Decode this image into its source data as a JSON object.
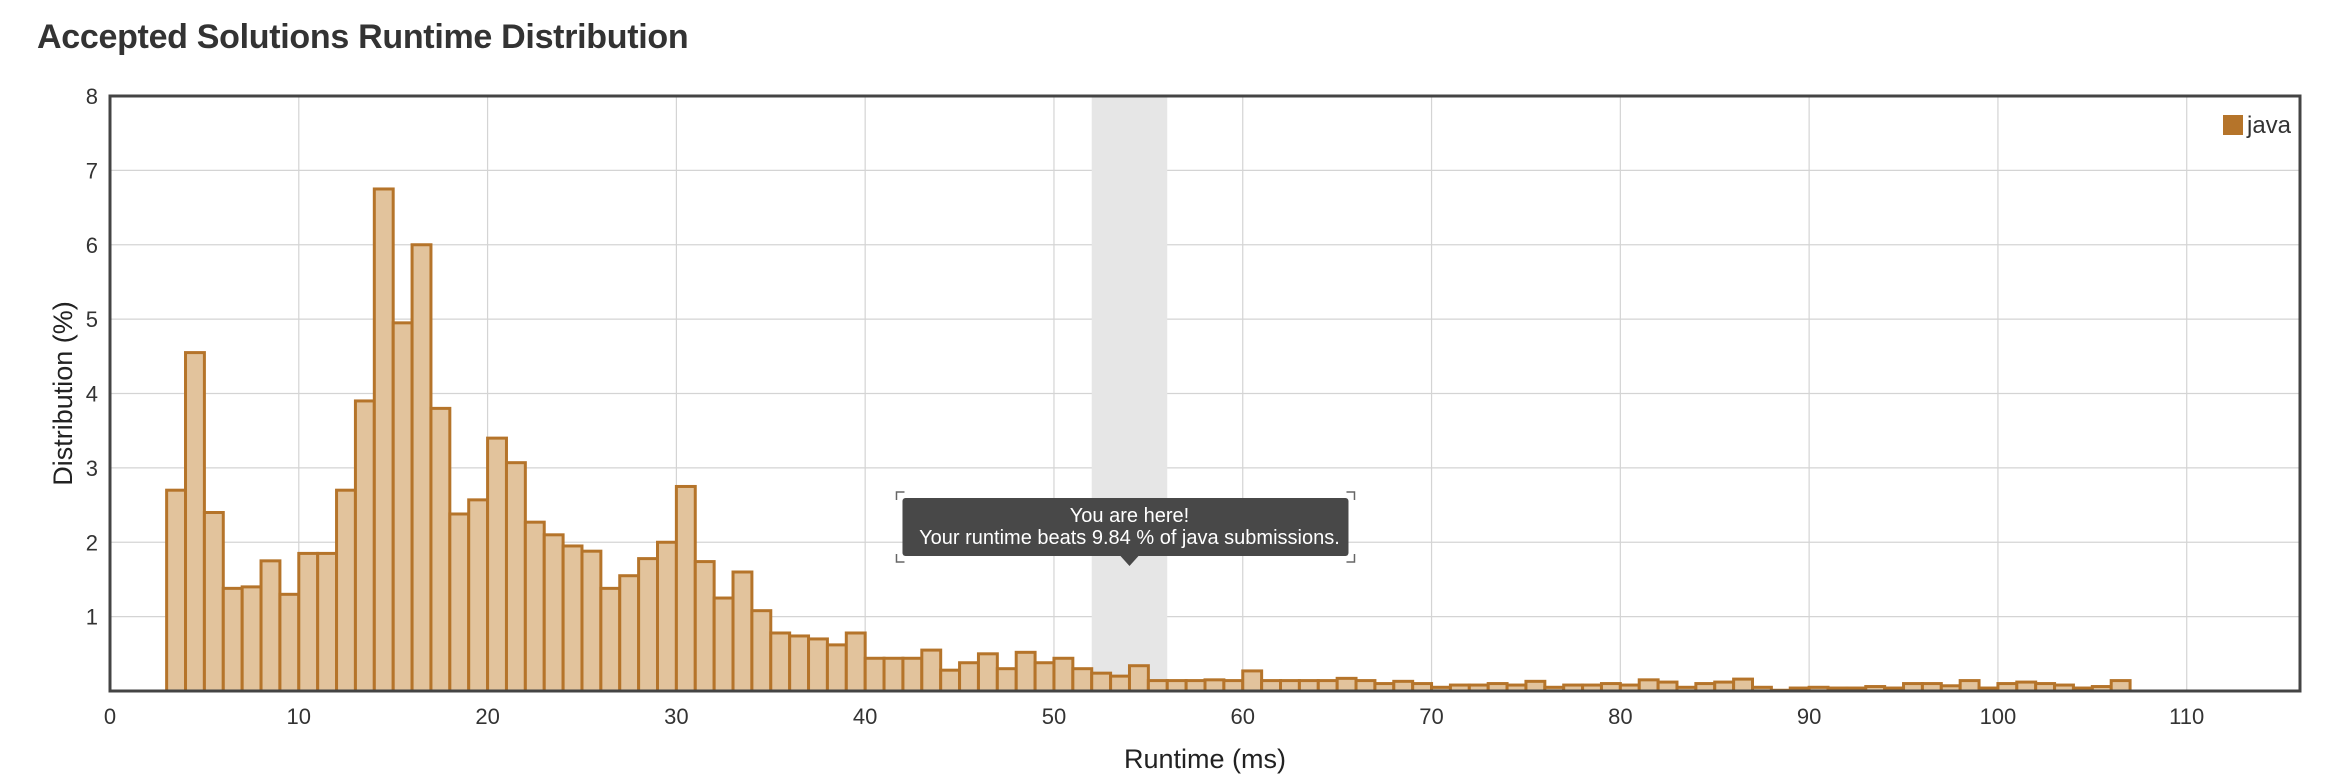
{
  "page": {
    "title": "Accepted Solutions Runtime Distribution"
  },
  "chart_data": {
    "type": "bar",
    "xlabel": "Runtime (ms)",
    "ylabel": "Distribution (%)",
    "xlim": [
      0,
      116
    ],
    "ylim": [
      0,
      8
    ],
    "x_ticks": [
      0,
      10,
      20,
      30,
      40,
      50,
      60,
      70,
      80,
      90,
      100,
      110
    ],
    "y_ticks": [
      1,
      2,
      3,
      4,
      5,
      6,
      7,
      8
    ],
    "grid": true,
    "legend": {
      "position": "top-right",
      "entries": [
        "java"
      ]
    },
    "colors": {
      "bar_fill": "#e2c39c",
      "bar_stroke": "#b5742a",
      "legend_swatch": "#b5742a",
      "highlight_band": "#e6e6e6",
      "tooltip_bg": "#484848"
    },
    "highlight": {
      "x_range": [
        52,
        56
      ]
    },
    "annotation": {
      "line1": "You are here!",
      "line2": "Your runtime beats 9.84 % of java submissions."
    },
    "series": [
      {
        "name": "java",
        "x": [
          3,
          4,
          5,
          6,
          7,
          8,
          9,
          10,
          11,
          12,
          13,
          14,
          15,
          16,
          17,
          18,
          19,
          20,
          21,
          22,
          23,
          24,
          25,
          26,
          27,
          28,
          29,
          30,
          31,
          32,
          33,
          34,
          35,
          36,
          37,
          38,
          39,
          40,
          41,
          42,
          43,
          44,
          45,
          46,
          47,
          48,
          49,
          50,
          51,
          52,
          53,
          54,
          55,
          56,
          57,
          58,
          59,
          60,
          61,
          62,
          63,
          64,
          65,
          66,
          67,
          68,
          69,
          70,
          71,
          72,
          73,
          74,
          75,
          76,
          77,
          78,
          79,
          80,
          81,
          82,
          83,
          84,
          85,
          86,
          87,
          88,
          89,
          90,
          91,
          92,
          93,
          94,
          95,
          96,
          97,
          98,
          99,
          100,
          101,
          102,
          103,
          104,
          105,
          106
        ],
        "values": [
          2.7,
          4.55,
          2.4,
          1.38,
          1.4,
          1.75,
          1.3,
          1.85,
          1.85,
          2.7,
          3.9,
          6.75,
          4.95,
          6.0,
          3.8,
          2.38,
          2.57,
          3.4,
          3.07,
          2.27,
          2.1,
          1.95,
          1.88,
          1.38,
          1.55,
          1.78,
          2.0,
          2.75,
          1.74,
          1.25,
          1.6,
          1.08,
          0.78,
          0.74,
          0.7,
          0.62,
          0.78,
          0.44,
          0.44,
          0.44,
          0.55,
          0.28,
          0.38,
          0.5,
          0.3,
          0.52,
          0.38,
          0.44,
          0.3,
          0.24,
          0.2,
          0.34,
          0.14,
          0.14,
          0.14,
          0.15,
          0.14,
          0.27,
          0.14,
          0.14,
          0.14,
          0.14,
          0.17,
          0.14,
          0.1,
          0.13,
          0.1,
          0.05,
          0.08,
          0.08,
          0.1,
          0.08,
          0.13,
          0.05,
          0.08,
          0.08,
          0.1,
          0.08,
          0.15,
          0.12,
          0.05,
          0.1,
          0.12,
          0.16,
          0.05,
          0.01,
          0.04,
          0.05,
          0.04,
          0.04,
          0.06,
          0.04,
          0.1,
          0.1,
          0.07,
          0.14,
          0.04,
          0.1,
          0.12,
          0.1,
          0.08,
          0.04,
          0.06,
          0.14
        ]
      }
    ]
  }
}
